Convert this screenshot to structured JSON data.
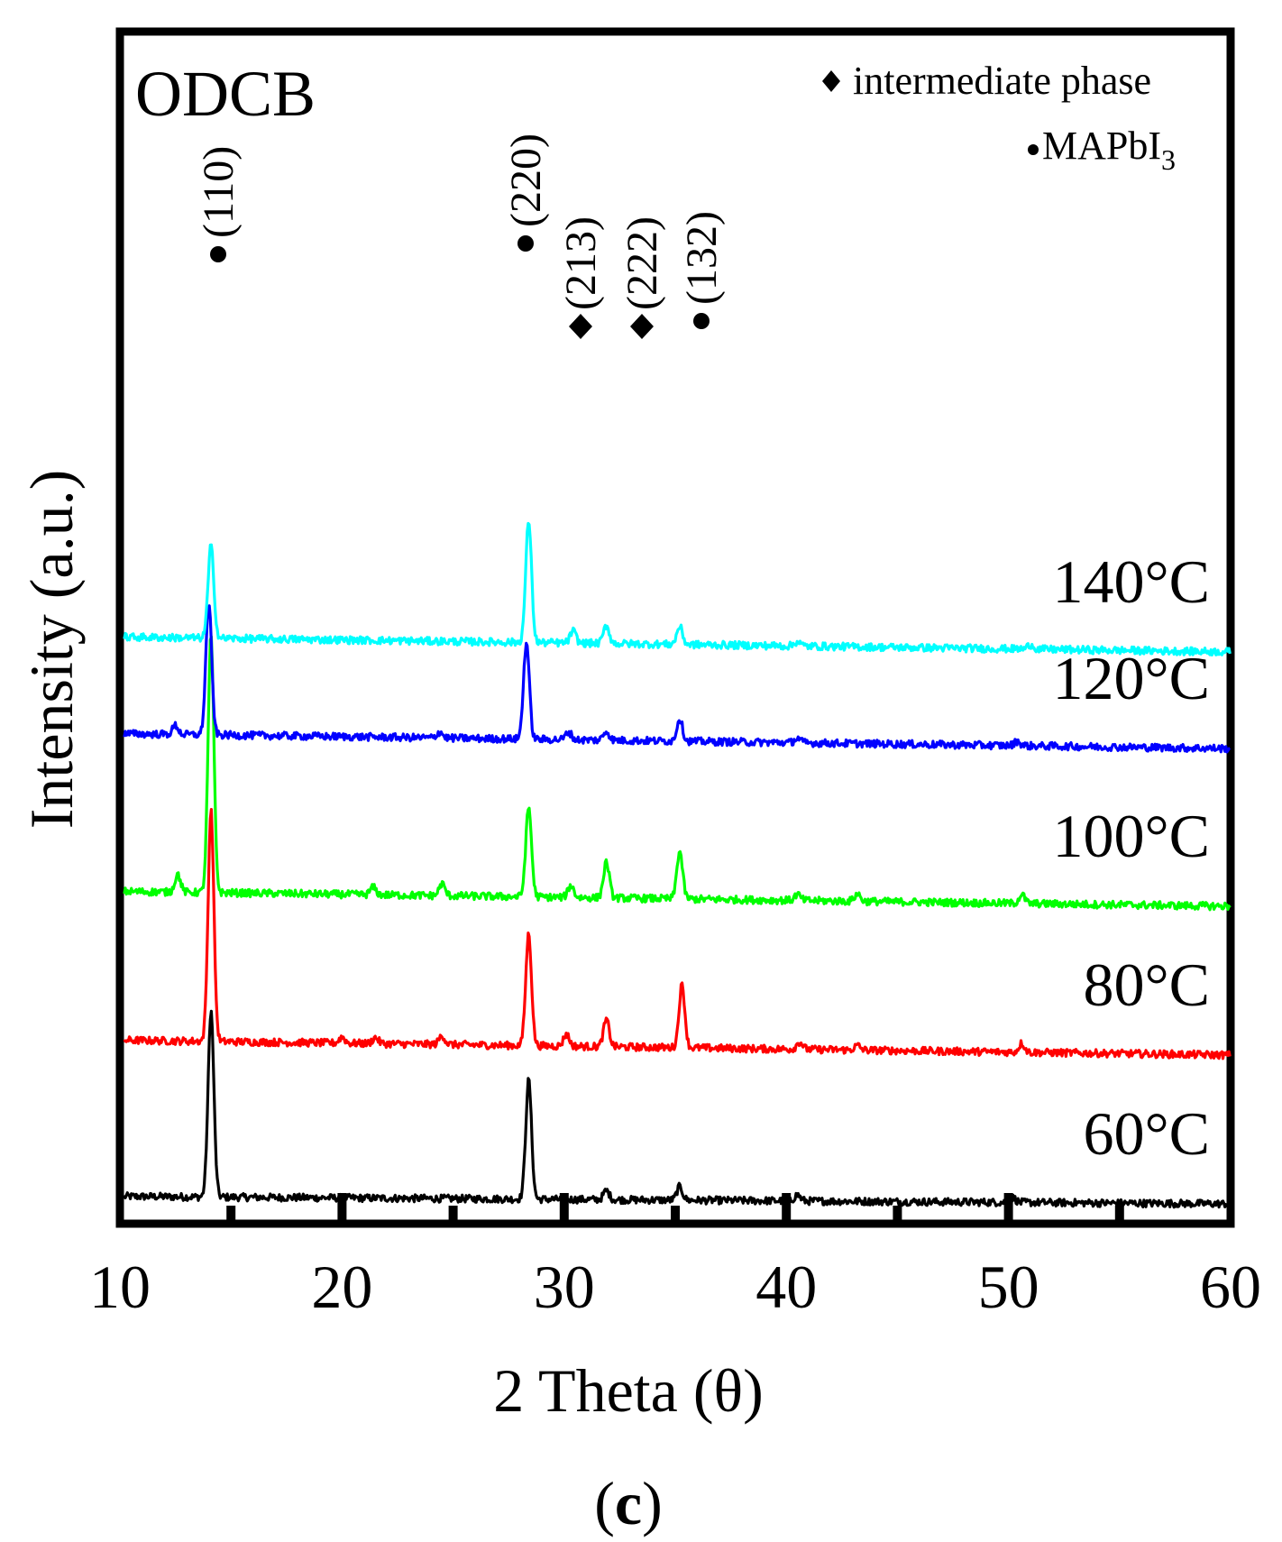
{
  "panel_label": "c",
  "chart_data": {
    "type": "line",
    "title": "ODCB",
    "xlabel": "2 Theta (θ)",
    "ylabel": "Intensity (a.u.)",
    "xlim": [
      10,
      60
    ],
    "xticks": [
      10,
      20,
      30,
      40,
      50,
      60
    ],
    "minor_xticks": [
      15,
      25,
      35,
      45,
      55
    ],
    "grid": false,
    "legend": {
      "position": "top-right",
      "entries": [
        {
          "marker": "diamond",
          "label": "intermediate phase"
        },
        {
          "marker": "circle",
          "label": "MAPbI",
          "subscript": "3"
        }
      ]
    },
    "peak_annotations": [
      {
        "x": 14.2,
        "label": "(110)",
        "marker": "circle"
      },
      {
        "x": 28.4,
        "label": "(220)",
        "marker": "circle"
      },
      {
        "x": 30.8,
        "label": "(213)",
        "marker": "diamond"
      },
      {
        "x": 33.6,
        "label": "(222)",
        "marker": "diamond"
      },
      {
        "x": 36.3,
        "label": "(132)",
        "marker": "circle"
      }
    ],
    "series": [
      {
        "name": "60°C",
        "color": "#000000",
        "baseline": 1.0,
        "slope": 0.001,
        "peaks": [
          [
            14.1,
            1.25
          ],
          [
            28.4,
            0.8
          ],
          [
            31.9,
            0.06
          ],
          [
            35.2,
            0.09
          ],
          [
            40.5,
            0.04
          ],
          [
            50.2,
            0.03
          ]
        ]
      },
      {
        "name": "80°C",
        "color": "#ff0000",
        "baseline": 2.0,
        "slope": 0.002,
        "peaks": [
          [
            14.1,
            1.55
          ],
          [
            28.4,
            0.75
          ],
          [
            30.1,
            0.08
          ],
          [
            31.9,
            0.18
          ],
          [
            35.3,
            0.42
          ],
          [
            40.6,
            0.05
          ],
          [
            43.2,
            0.03
          ],
          [
            50.6,
            0.06
          ],
          [
            21.5,
            0.04
          ],
          [
            24.5,
            0.06
          ],
          [
            20.0,
            0.04
          ]
        ]
      },
      {
        "name": "100°C",
        "color": "#00ff00",
        "baseline": 3.0,
        "slope": 0.002,
        "peaks": [
          [
            14.1,
            1.72
          ],
          [
            12.6,
            0.12
          ],
          [
            28.4,
            0.6
          ],
          [
            30.3,
            0.08
          ],
          [
            31.9,
            0.24
          ],
          [
            35.2,
            0.32
          ],
          [
            24.5,
            0.08
          ],
          [
            21.4,
            0.05
          ],
          [
            40.5,
            0.04
          ],
          [
            43.2,
            0.05
          ],
          [
            50.6,
            0.06
          ]
        ]
      },
      {
        "name": "120°C",
        "color": "#0000ff",
        "baseline": 4.06,
        "slope": 0.002,
        "peaks": [
          [
            14.0,
            0.88
          ],
          [
            28.3,
            0.65
          ],
          [
            30.2,
            0.05
          ],
          [
            31.9,
            0.06
          ],
          [
            35.2,
            0.15
          ],
          [
            12.5,
            0.06
          ],
          [
            24.4,
            0.04
          ],
          [
            40.5,
            0.03
          ],
          [
            50.4,
            0.03
          ]
        ]
      },
      {
        "name": "140°C",
        "color": "#00ffff",
        "baseline": 4.71,
        "slope": 0.002,
        "peaks": [
          [
            14.1,
            0.62
          ],
          [
            28.4,
            0.82
          ],
          [
            30.4,
            0.08
          ],
          [
            31.9,
            0.12
          ],
          [
            35.2,
            0.12
          ],
          [
            40.5,
            0.03
          ],
          [
            51.0,
            0.03
          ]
        ]
      }
    ]
  }
}
